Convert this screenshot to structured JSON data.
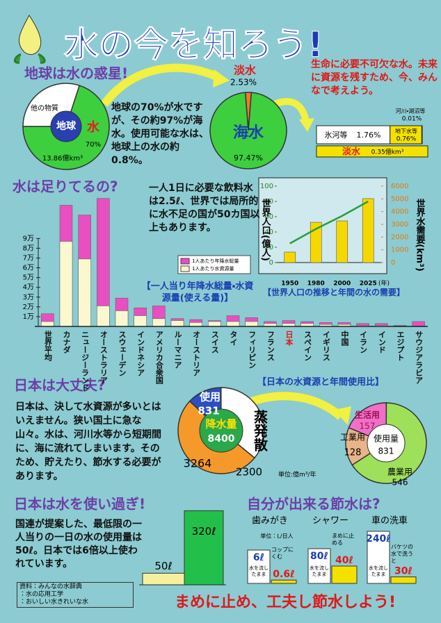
{
  "title": "水の今を知ろう!",
  "slogan": "まめに止め、工夫し節水しよう!",
  "texts": {
    "earth": "地球の70%が水ですが、その約97%が海水。使用可能な水は、地球上の水の約0.8%。",
    "life": "生命に必要不可欠な水。未来に資源を残すため、今、みんなで考えよう。",
    "need": "一人1日に必要な飲料水は2.5ℓ、世界では局所的に水不足の国が50カ国以上もあります。",
    "japan": "日本は、決して水資源が多いとはいえません。狭い国土に急な山々。水は、河川水等から短期間に、海に流れてしまいます。そのため、貯えたり、節水する必要があります。",
    "overuse": "国連が提案した、最低限の一人当りの一日の水の使用量は50ℓ。日本では6倍以上使われています。",
    "source": [
      "資料：みんなの水辞典",
      "：水の応用工学",
      "：おいしい水きれいな水"
    ]
  },
  "chart_data": [
    {
      "type": "pie",
      "title": "地球は水の惑星!",
      "center": "地球",
      "categories": [
        "水",
        "他の物質"
      ],
      "values": [
        70,
        30
      ],
      "value_labels": [
        "70%",
        null
      ],
      "colors": [
        "#3ecf3e",
        "#ffffff"
      ],
      "note": "13.86億km³"
    },
    {
      "type": "pie",
      "categories": [
        "淡水",
        "海水"
      ],
      "values": [
        2.53,
        97.47
      ],
      "value_labels": [
        "2.53%",
        "97.47%"
      ],
      "colors": [
        "#f07a2a",
        "#3ecf3e"
      ]
    },
    {
      "type": "hbar",
      "title": "淡水",
      "note": "0.35億km³",
      "categories": [
        "氷河等",
        "地下水等",
        "河川・湖沼等"
      ],
      "values": [
        1.76,
        0.76,
        0.01
      ],
      "value_labels": [
        "1.76%",
        "0.76%",
        "0.01%"
      ],
      "colors": [
        "#ffffff",
        "#f5e100",
        "#2a9d3a"
      ]
    },
    {
      "type": "bar",
      "title": "水は足りてるの?",
      "caption": "【一人当り年降水総量・水資源量(使える量)】",
      "highlight": "日本",
      "categories": [
        "世界平均",
        "カナダ",
        "ニュージーランド",
        "オーストラリア",
        "スウェーデン",
        "インドネシア",
        "アメリカ合衆国",
        "ルーマニア",
        "オーストリア",
        "スイス",
        "タイ",
        "フィリピン",
        "フランス",
        "日本",
        "スペイン",
        "イギリス",
        "中国",
        "イラン",
        "インド",
        "エジプト",
        "サウジアラビア"
      ],
      "series": [
        {
          "name": "1人あたり年降水総量",
          "color": "#e84fc0",
          "values": [
            1.3,
            12.4,
            11.4,
            13.1,
            2.9,
            1.9,
            2.1,
            0.8,
            0.7,
            0.6,
            1.1,
            0.9,
            0.5,
            0.6,
            0.5,
            0.4,
            0.4,
            0.3,
            0.3,
            0.1,
            0.5
          ]
        },
        {
          "name": "1人あたり水資源量",
          "color": "#fbf8d0",
          "values": [
            0.5,
            8.7,
            6.9,
            2.1,
            1.6,
            1.1,
            0.8,
            0.6,
            0.4,
            0.5,
            0.5,
            0.5,
            0.3,
            0.3,
            0.3,
            0.2,
            0.2,
            0.1,
            0.1,
            0.05,
            0.05
          ]
        }
      ],
      "ylim": [
        0,
        13.5
      ],
      "yticks": [
        {
          "value": 1,
          "label": "1万"
        },
        {
          "value": 2,
          "label": "2万"
        },
        {
          "value": 3,
          "label": "3万"
        },
        {
          "value": 4,
          "label": "4万"
        },
        {
          "value": 5,
          "label": "5万"
        },
        {
          "value": 6,
          "label": "6万"
        },
        {
          "value": 7,
          "label": "7万"
        },
        {
          "value": 8,
          "label": "8万"
        },
        {
          "value": 9,
          "label": "9万"
        }
      ]
    },
    {
      "type": "combo",
      "caption": "【世界人口の推移と年間の水の需要】",
      "categories": [
        "1950",
        "1980",
        "2000",
        "2025"
      ],
      "x_unit": "(年)",
      "ylabel": "世界人口(億人)",
      "y2label": "世界水需要(km³)",
      "series": [
        {
          "color": "#2a9d3a",
          "values": [
            25,
            44,
            61,
            80
          ]
        },
        {
          "color": "#f5d800",
          "axis": "y2",
          "values": [
            820,
            3160,
            3270,
            5020
          ]
        }
      ],
      "ylim": [
        0,
        100
      ],
      "yticks": [
        0,
        20,
        40,
        60,
        80,
        100
      ],
      "y2lim": [
        0,
        6000
      ],
      "y2ticks": [
        0,
        1000,
        2000,
        3000,
        4000,
        5000,
        6000
      ]
    },
    {
      "type": "pie",
      "title": "日本は大丈夫?",
      "caption": "【日本の水資源と年間使用比】",
      "unit": "単位:億m³/年",
      "center": "降水量",
      "center_value": 8400,
      "categories": [
        "使用",
        "蒸発散",
        null
      ],
      "values": [
        831,
        2300,
        3264
      ],
      "colors": [
        "#2a4fc0",
        "#ffffff",
        "#f59a2a"
      ]
    },
    {
      "type": "pie",
      "center": "使用量",
      "center_value": 831,
      "categories": [
        "工業用",
        "生活用",
        "農業用"
      ],
      "values": [
        128,
        157,
        546
      ],
      "colors": [
        "#e8b48a",
        "#f070c8",
        "#9fe05a"
      ]
    },
    {
      "type": "column",
      "title": "日本は水を使い過ぎ!",
      "values": [
        50,
        320
      ],
      "value_labels": [
        "50ℓ",
        "320ℓ"
      ],
      "colors": [
        "#f5f0a0",
        "#22c04a"
      ],
      "ylim": [
        0,
        330
      ]
    },
    {
      "type": "pair",
      "title": "自分が出来る節水は?",
      "unit": "単位：L/日人",
      "categories": [
        "歯みがき",
        "シャワー",
        "車の洗車"
      ],
      "series": [
        {
          "name": "水を流したまま",
          "values": [
            6,
            80,
            240
          ],
          "value_labels": [
            "6ℓ",
            "80ℓ",
            "240ℓ"
          ]
        },
        {
          "values": [
            0.6,
            40,
            30
          ],
          "value_labels": [
            "0.6ℓ",
            "40ℓ",
            "30ℓ"
          ],
          "notes": [
            "コップにくむ",
            "まめに止める",
            "バケツの水で洗うと"
          ]
        }
      ]
    }
  ]
}
